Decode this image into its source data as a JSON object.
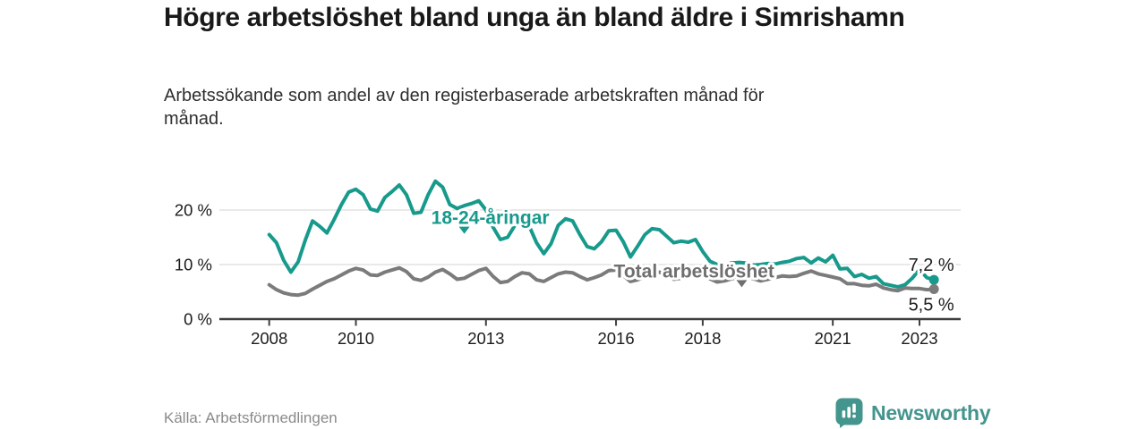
{
  "header": {
    "title": "Högre arbetslöshet bland unga än bland äldre i Simrishamn",
    "subtitle": "Arbetssökande som andel av den registerbaserade arbetskraften månad för månad."
  },
  "footer": {
    "source": "Källa: Arbetsförmedlingen",
    "brand": "Newsworthy"
  },
  "colors": {
    "accent_teal": "#179a8c",
    "line_gray": "#7b7b7b",
    "gray_label": "#6f6f6f",
    "grid": "#dcdcdc",
    "axis": "#3f3f3f",
    "tick_text": "#1c1c1c",
    "value_text": "#1c1c1c",
    "muted_text": "#8a8a8a",
    "brand_teal": "#44958e"
  },
  "chart_data": {
    "type": "line",
    "title": "Högre arbetslöshet bland unga än bland äldre i Simrishamn",
    "subtitle": "Arbetssökande som andel av den registerbaserade arbetskraften månad för månad.",
    "unit": "%",
    "x_start": 2008,
    "x_step_years": 0.16667,
    "x_ticks": [
      2008,
      2010,
      2013,
      2016,
      2018,
      2021,
      2023
    ],
    "x_tick_labels": [
      "2008",
      "2010",
      "2013",
      "2016",
      "2018",
      "2021",
      "2023"
    ],
    "y_ticks": [
      0,
      10,
      20
    ],
    "y_tick_labels": [
      "0 %",
      "10 %",
      "20 %"
    ],
    "xlim": [
      2006.85,
      2023.95
    ],
    "ylim": [
      0,
      28.2
    ],
    "grid": "horizontal",
    "legend_position": "inline-annotations",
    "series": [
      {
        "id": "young",
        "name": "18-24-åringar",
        "color": "#179a8c",
        "label_color": "#179a8c",
        "end_value_label": "7,2 %",
        "last_value": 7.2,
        "values": [
          15.5,
          14.0,
          10.8,
          8.6,
          10.5,
          14.5,
          18.0,
          17.0,
          15.8,
          18.3,
          21.0,
          23.3,
          23.8,
          22.8,
          20.2,
          19.8,
          22.3,
          23.4,
          24.6,
          22.8,
          19.4,
          19.6,
          22.8,
          25.3,
          24.2,
          21.0,
          20.3,
          20.8,
          21.2,
          21.7,
          20.0,
          16.8,
          14.6,
          15.0,
          17.2,
          17.9,
          17.0,
          14.0,
          12.0,
          13.8,
          17.2,
          18.4,
          18.0,
          15.5,
          13.3,
          12.9,
          14.2,
          16.2,
          16.3,
          14.2,
          11.4,
          13.4,
          15.5,
          16.6,
          16.4,
          15.2,
          14.0,
          14.3,
          14.1,
          14.6,
          12.4,
          10.6,
          10.0,
          9.9,
          10.3,
          10.4,
          10.3,
          9.9,
          10.0,
          10.2,
          10.1,
          10.4,
          10.6,
          11.1,
          11.3,
          10.3,
          11.2,
          10.5,
          11.7,
          9.2,
          9.3,
          7.8,
          8.2,
          7.5,
          7.8,
          6.5,
          6.2,
          5.9,
          6.3,
          7.5,
          9.1,
          7.6,
          7.2
        ]
      },
      {
        "id": "total",
        "name": "Total arbetslöshet",
        "color": "#7b7b7b",
        "label_color": "#6f6f6f",
        "end_value_label": "5,5 %",
        "last_value": 5.5,
        "values": [
          6.3,
          5.4,
          4.8,
          4.5,
          4.4,
          4.7,
          5.5,
          6.2,
          6.9,
          7.4,
          8.1,
          8.8,
          9.3,
          9.0,
          8.1,
          8.0,
          8.6,
          9.0,
          9.4,
          8.7,
          7.4,
          7.1,
          7.7,
          8.6,
          9.1,
          8.3,
          7.3,
          7.5,
          8.2,
          8.9,
          9.3,
          7.8,
          6.7,
          6.9,
          7.8,
          8.5,
          8.3,
          7.2,
          6.9,
          7.6,
          8.3,
          8.6,
          8.5,
          7.8,
          7.2,
          7.6,
          8.1,
          8.9,
          9.0,
          8.0,
          6.9,
          7.2,
          7.8,
          8.3,
          8.6,
          8.0,
          7.3,
          7.5,
          7.9,
          8.2,
          8.0,
          7.4,
          6.8,
          7.0,
          7.4,
          7.7,
          7.8,
          7.4,
          7.0,
          7.3,
          7.6,
          7.9,
          7.8,
          7.9,
          8.4,
          8.8,
          8.3,
          8.0,
          7.7,
          7.4,
          6.5,
          6.5,
          6.2,
          6.1,
          6.4,
          5.7,
          5.4,
          5.2,
          5.7,
          5.6,
          5.6,
          5.4,
          5.5
        ]
      }
    ],
    "annotations": [
      {
        "series": "young",
        "text": "18-24-åringar",
        "x": 2013.1,
        "y": 18.6,
        "marker_x": 2012.5,
        "marker_y": 16.3
      },
      {
        "series": "total",
        "text": "Total arbetslöshet",
        "x": 2017.8,
        "y": 8.8,
        "marker_x": 2018.9,
        "marker_y": 6.5
      }
    ]
  }
}
